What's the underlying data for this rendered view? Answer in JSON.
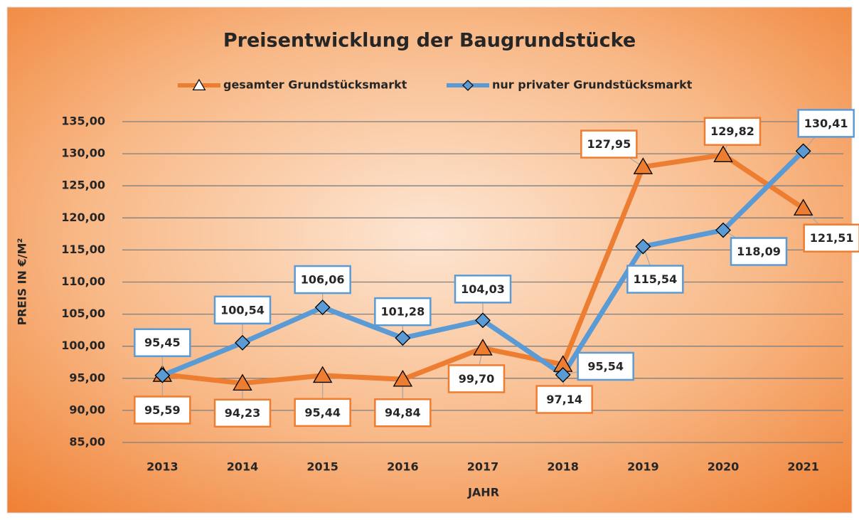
{
  "chart_data": {
    "type": "line",
    "title": "Preisentwicklung der Baugrundstücke",
    "xlabel": "JAHR",
    "ylabel": "PREIS IN €/M²",
    "categories": [
      "2013",
      "2014",
      "2015",
      "2016",
      "2017",
      "2018",
      "2019",
      "2020",
      "2021"
    ],
    "series": [
      {
        "name": "gesamter Grundstücksmarkt",
        "color": "#ed7d31",
        "marker": "triangle",
        "values": [
          95.59,
          94.23,
          95.44,
          94.84,
          99.7,
          97.14,
          127.95,
          129.82,
          121.51
        ],
        "value_labels": [
          "95,59",
          "94,23",
          "95,44",
          "94,84",
          "99,70",
          "97,14",
          "127,95",
          "129,82",
          "121,51"
        ]
      },
      {
        "name": "nur privater Grundstücksmarkt",
        "color": "#5b9bd5",
        "marker": "diamond",
        "values": [
          95.45,
          100.54,
          106.06,
          101.28,
          104.03,
          95.54,
          115.54,
          118.09,
          130.41
        ],
        "value_labels": [
          "95,45",
          "100,54",
          "106,06",
          "101,28",
          "104,03",
          "95,54",
          "115,54",
          "118,09",
          "130,41"
        ]
      }
    ],
    "ylim": [
      85,
      135
    ],
    "yticks": [
      {
        "value": 85,
        "label": "85,00"
      },
      {
        "value": 90,
        "label": "90,00"
      },
      {
        "value": 95,
        "label": "95,00"
      },
      {
        "value": 100,
        "label": "100,00"
      },
      {
        "value": 105,
        "label": "105,00"
      },
      {
        "value": 110,
        "label": "110,00"
      },
      {
        "value": 115,
        "label": "115,00"
      },
      {
        "value": 120,
        "label": "120,00"
      },
      {
        "value": 125,
        "label": "125,00"
      },
      {
        "value": 130,
        "label": "130,00"
      },
      {
        "value": 135,
        "label": "135,00"
      }
    ],
    "grid": true,
    "legend": "top"
  }
}
